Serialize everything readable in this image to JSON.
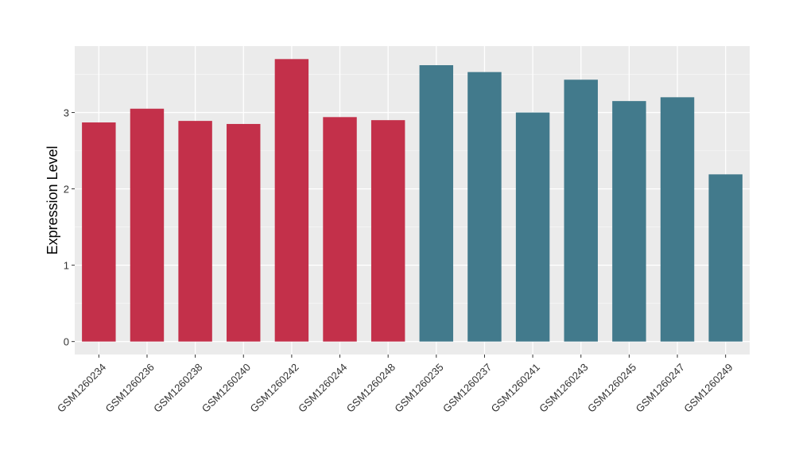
{
  "chart_data": {
    "type": "bar",
    "title": "",
    "xlabel": "",
    "ylabel": "Expression Level",
    "ylim": [
      -0.17,
      3.87
    ],
    "yticks": [
      0,
      1,
      2,
      3
    ],
    "grid": true,
    "legend": "none",
    "panel_color": "#ebebeb",
    "categories": [
      "GSM1260234",
      "GSM1260236",
      "GSM1260238",
      "GSM1260240",
      "GSM1260242",
      "GSM1260244",
      "GSM1260248",
      "GSM1260235",
      "GSM1260237",
      "GSM1260241",
      "GSM1260243",
      "GSM1260245",
      "GSM1260247",
      "GSM1260249"
    ],
    "values": [
      2.87,
      3.05,
      2.89,
      2.85,
      3.7,
      2.94,
      2.9,
      3.62,
      3.53,
      3.0,
      3.43,
      3.15,
      3.2,
      2.19
    ],
    "colors": [
      "#c3304a",
      "#c3304a",
      "#c3304a",
      "#c3304a",
      "#c3304a",
      "#c3304a",
      "#c3304a",
      "#427a8c",
      "#427a8c",
      "#427a8c",
      "#427a8c",
      "#427a8c",
      "#427a8c",
      "#427a8c"
    ]
  }
}
